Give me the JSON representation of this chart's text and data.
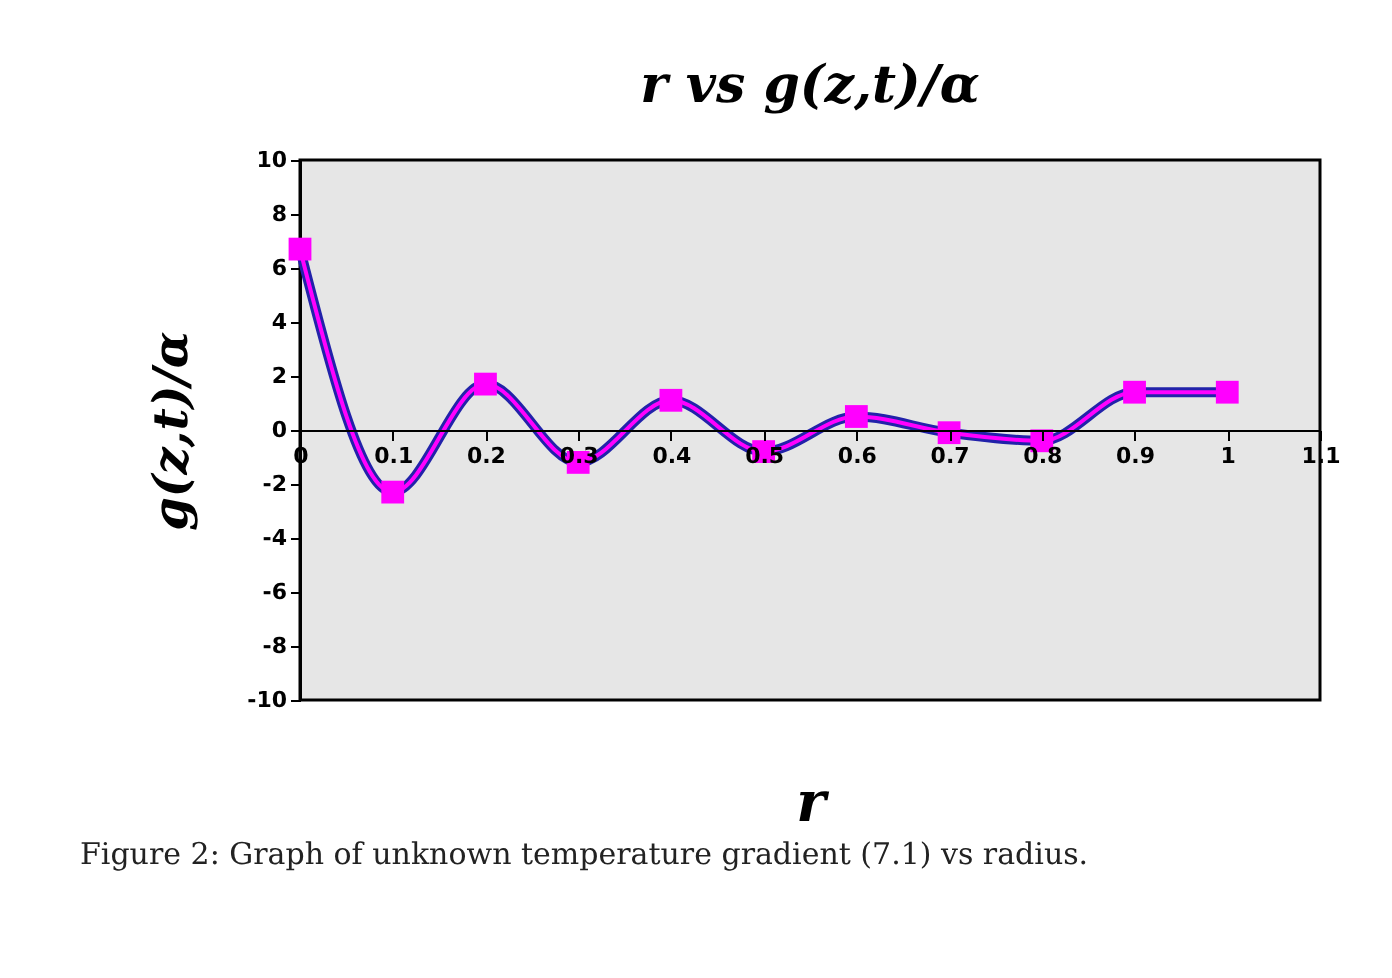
{
  "chart_data": {
    "type": "line",
    "title": "r  vs  g(z,t)/α",
    "xlabel": "r",
    "ylabel": "g(z,t)/α",
    "x": [
      0,
      0.1,
      0.2,
      0.3,
      0.4,
      0.5,
      0.6,
      0.7,
      0.8,
      0.9,
      1.0
    ],
    "series": [
      {
        "color": "#ff00ff",
        "values": [
          6.7,
          -2.3,
          1.7,
          -1.2,
          1.1,
          -0.8,
          0.5,
          -0.1,
          -0.4,
          1.4,
          1.4
        ]
      }
    ],
    "marker": "square",
    "line_style": "solid",
    "grid": false,
    "legend": false,
    "xlim": [
      0,
      1.1
    ],
    "xticks": [
      0,
      0.1,
      0.2,
      0.3,
      0.4,
      0.5,
      0.6,
      0.7,
      0.8,
      0.9,
      1,
      1.1
    ],
    "ylim": [
      -10,
      10
    ],
    "yticks": [
      -10,
      -8,
      -6,
      -4,
      -2,
      0,
      2,
      4,
      6,
      8,
      10
    ],
    "annotations": [
      "Figure 2: Graph of unknown temperature gradient (7.1) vs radius."
    ]
  }
}
